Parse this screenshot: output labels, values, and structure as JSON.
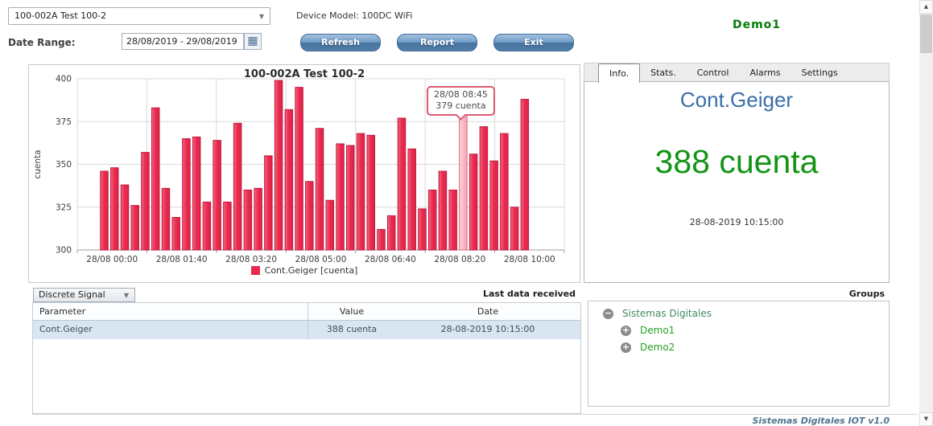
{
  "header": {
    "device_select_value": "100-002A Test 100-2",
    "device_model": "Device Model: 100DC WiFi",
    "active_group": "Demo1",
    "date_range_label": "Date Range:",
    "date_range_value": "28/08/2019 - 29/08/2019",
    "refresh_button": "Refresh",
    "report_button": "Report",
    "exit_button": "Exit"
  },
  "chart_data": {
    "type": "bar",
    "title": "100-002A Test 100-2",
    "series": [
      {
        "name": "Cont.Geiger",
        "unit": "cuenta",
        "values": [
          346,
          348,
          338,
          326,
          357,
          383,
          336,
          319,
          365,
          366,
          328,
          364,
          328,
          374,
          335,
          336,
          355,
          399,
          382,
          395,
          340,
          371,
          329,
          362,
          361,
          368,
          367,
          312,
          320,
          377,
          359,
          324,
          335,
          346,
          335,
          379,
          356,
          372,
          352,
          368,
          325,
          388
        ]
      }
    ],
    "x_start": "28/08 00:00",
    "x_interval_minutes": 15,
    "x_tick_labels": [
      "28/08 00:00",
      "28/08 01:40",
      "28/08 03:20",
      "28/08 05:00",
      "28/08 06:40",
      "28/08 08:20",
      "28/08 10:00"
    ],
    "ylabel": "cuenta",
    "ylim": [
      300,
      400
    ],
    "yticks": [
      300,
      325,
      350,
      375,
      400
    ],
    "legend_label": "Cont.Geiger [cuenta]",
    "highlight_index": 35,
    "tooltip": {
      "line1": "28/08 08:45",
      "line2": "379 cuenta"
    },
    "colors": {
      "bar_fill": [
        "#f4677f",
        "#e92a50",
        "#e22347"
      ],
      "bar_stroke": "#bc1b40",
      "highlight_fill": [
        "#fdd3da",
        "#f5a2b2"
      ],
      "highlight_stroke": "#d96a7e",
      "grid": "#d9d9d9",
      "axis": "#9f9f9f",
      "text": "#3c3c3c"
    }
  },
  "info_panel": {
    "tabs": [
      "Info.",
      "Stats.",
      "Control",
      "Alarms",
      "Settings"
    ],
    "active_tab": "Info.",
    "parameter": "Cont.Geiger",
    "value": "388 cuenta",
    "timestamp": "28-08-2019 10:15:00",
    "title_color": "#3a6fa8",
    "value_color": "#149416"
  },
  "bottom": {
    "signal_select_value": "Discrete Signal",
    "last_data_label": "Last data received",
    "table": {
      "columns": [
        "Parameter",
        "Value",
        "Date"
      ],
      "rows": [
        {
          "parameter": "Cont.Geiger",
          "value": "388 cuenta",
          "date": "28-08-2019 10:15:00"
        }
      ]
    },
    "groups_label": "Groups",
    "tree": {
      "root": "Sistemas Digitales",
      "children": [
        "Demo1",
        "Demo2"
      ]
    },
    "footer": "Sistemas Digitales IOT v1.0"
  },
  "icons": {
    "dropdown_arrow": "▼",
    "calendar": "▦",
    "tree_collapse": "−",
    "tree_expand": "+",
    "scroll_up": "▲",
    "scroll_down": "▼"
  }
}
